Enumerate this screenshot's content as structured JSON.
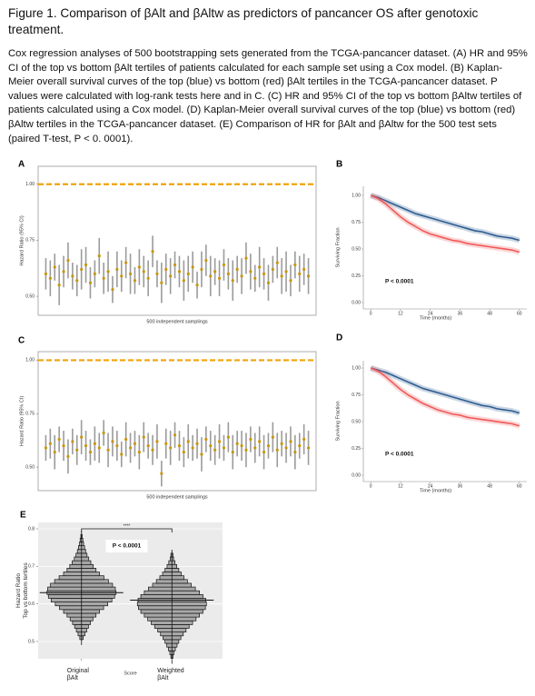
{
  "caption": {
    "title": "Figure 1.  Comparison of βAlt and βAltw as predictors of pancancer OS after genotoxic treatment.",
    "text": "Cox regression analyses of 500 bootstrapping sets generated from the TCGA-pancancer dataset. (A) HR and 95% CI of the top vs bottom βAlt tertiles of patients calculated for each sample set using a Cox model. (B) Kaplan-Meier overall survival curves of the top (blue) vs bottom (red) βAlt tertiles in the TCGA-pancancer dataset. P values were calculated with log-rank tests here and in C. (C) HR and 95% CI of the top vs bottom βAltw tertiles of patients calculated using a Cox model. (D) Kaplan-Meier overall survival curves of the top (blue) vs bottom (red) βAltw tertiles in the TCGA-pancancer dataset. (E) Comparison of HR for βAlt and βAltw for the 500 test sets (paired T-test, P < 0. 0001)."
  },
  "chart_data": [
    {
      "type": "errorbar",
      "panel_label": "A",
      "xlabel": "500 independent samplings",
      "ylabel": "Hazard Ratio (95% CI)",
      "ylim": [
        0.415,
        1.08
      ],
      "yticks": [
        {
          "value": 0.5,
          "label": "0.50"
        },
        {
          "value": 0.75,
          "label": "0.75"
        },
        {
          "value": 1.0,
          "label": "1.00"
        }
      ],
      "hline": 1.0,
      "hline_color": "#f0a30a",
      "color": "#c8960c",
      "error_color": "#8a8a8a",
      "grid": false,
      "values": [
        0.6,
        0.58,
        0.63,
        0.55,
        0.61,
        0.66,
        0.59,
        0.57,
        0.62,
        0.64,
        0.56,
        0.6,
        0.68,
        0.58,
        0.61,
        0.53,
        0.62,
        0.59,
        0.65,
        0.6,
        0.57,
        0.63,
        0.61,
        0.58,
        0.7,
        0.6,
        0.56,
        0.62,
        0.59,
        0.64,
        0.61,
        0.57,
        0.6,
        0.63,
        0.55,
        0.62,
        0.66,
        0.59,
        0.61,
        0.58,
        0.64,
        0.6,
        0.57,
        0.62,
        0.59,
        0.67,
        0.61,
        0.58,
        0.63,
        0.6,
        0.56,
        0.62,
        0.65,
        0.59,
        0.61,
        0.57,
        0.64,
        0.6,
        0.62,
        0.59
      ],
      "errors": [
        0.07,
        0.08,
        0.06,
        0.09,
        0.07,
        0.08,
        0.06,
        0.07,
        0.09,
        0.08,
        0.07,
        0.06,
        0.08,
        0.07,
        0.09,
        0.06,
        0.08,
        0.07,
        0.07,
        0.09,
        0.06,
        0.08,
        0.07,
        0.08,
        0.07,
        0.06,
        0.09,
        0.07,
        0.08,
        0.06,
        0.07,
        0.09,
        0.08,
        0.07,
        0.06,
        0.08,
        0.07,
        0.09,
        0.06,
        0.08,
        0.07,
        0.07,
        0.09,
        0.06,
        0.08,
        0.07,
        0.08,
        0.06,
        0.09,
        0.07,
        0.08,
        0.06,
        0.07,
        0.08,
        0.09,
        0.07,
        0.06,
        0.08,
        0.07,
        0.08
      ]
    },
    {
      "type": "line",
      "panel_label": "B",
      "xlabel": "Time (months)",
      "ylabel": "Surviving Fraction",
      "annotation": "P < 0.0001",
      "xlim": [
        -3,
        63
      ],
      "xticks": [
        0,
        12,
        24,
        36,
        48,
        60
      ],
      "ylim": [
        -0.06,
        1.085
      ],
      "yticks": [
        {
          "value": 0,
          "label": "0.00"
        },
        {
          "value": 0.25,
          "label": "0.25"
        },
        {
          "value": 0.5,
          "label": "0.50"
        },
        {
          "value": 0.75,
          "label": "0.75"
        },
        {
          "value": 1.0,
          "label": "1.00"
        }
      ],
      "x": [
        0,
        3,
        6,
        9,
        12,
        15,
        18,
        21,
        24,
        27,
        30,
        33,
        36,
        39,
        42,
        45,
        48,
        51,
        54,
        57,
        60
      ],
      "series": [
        {
          "color": "#2e5d91",
          "values": [
            1.0,
            0.98,
            0.95,
            0.92,
            0.89,
            0.86,
            0.83,
            0.81,
            0.79,
            0.77,
            0.75,
            0.73,
            0.71,
            0.69,
            0.67,
            0.66,
            0.64,
            0.62,
            0.61,
            0.6,
            0.58
          ]
        },
        {
          "color": "#f05a5a",
          "values": [
            1.0,
            0.97,
            0.92,
            0.86,
            0.8,
            0.75,
            0.71,
            0.67,
            0.64,
            0.62,
            0.6,
            0.58,
            0.57,
            0.55,
            0.54,
            0.53,
            0.52,
            0.51,
            0.5,
            0.49,
            0.47
          ]
        }
      ]
    },
    {
      "type": "errorbar",
      "panel_label": "C",
      "xlabel": "500 independent samplings",
      "ylabel": "Hazard Ratio (95% CI)",
      "ylim": [
        0.39,
        1.04
      ],
      "yticks": [
        {
          "value": 0.5,
          "label": "0.50"
        },
        {
          "value": 0.75,
          "label": "0.75"
        },
        {
          "value": 1.0,
          "label": "1.00"
        }
      ],
      "hline": 1.0,
      "hline_color": "#f0a30a",
      "color": "#c8960c",
      "error_color": "#8a8a8a",
      "grid": false,
      "values": [
        0.59,
        0.61,
        0.57,
        0.63,
        0.6,
        0.55,
        0.62,
        0.58,
        0.64,
        0.6,
        0.57,
        0.61,
        0.59,
        0.66,
        0.58,
        0.62,
        0.6,
        0.56,
        0.63,
        0.59,
        0.61,
        0.57,
        0.64,
        0.6,
        0.58,
        0.62,
        0.47,
        0.61,
        0.59,
        0.65,
        0.6,
        0.57,
        0.62,
        0.59,
        0.61,
        0.56,
        0.63,
        0.6,
        0.58,
        0.62,
        0.59,
        0.64,
        0.57,
        0.61,
        0.6,
        0.58,
        0.63,
        0.59,
        0.62,
        0.57,
        0.6,
        0.64,
        0.58,
        0.61,
        0.59,
        0.62,
        0.57,
        0.6,
        0.63,
        0.59
      ],
      "errors": [
        0.06,
        0.07,
        0.08,
        0.06,
        0.07,
        0.08,
        0.06,
        0.07,
        0.08,
        0.07,
        0.06,
        0.08,
        0.07,
        0.06,
        0.08,
        0.07,
        0.07,
        0.06,
        0.08,
        0.07,
        0.06,
        0.08,
        0.07,
        0.06,
        0.07,
        0.08,
        0.06,
        0.07,
        0.08,
        0.06,
        0.07,
        0.07,
        0.08,
        0.06,
        0.07,
        0.08,
        0.06,
        0.07,
        0.07,
        0.08,
        0.06,
        0.07,
        0.08,
        0.06,
        0.07,
        0.08,
        0.06,
        0.07,
        0.07,
        0.08,
        0.06,
        0.07,
        0.08,
        0.06,
        0.07,
        0.07,
        0.08,
        0.06,
        0.07,
        0.08
      ]
    },
    {
      "type": "line",
      "panel_label": "D",
      "xlabel": "Time (months)",
      "ylabel": "Surviving Fraction",
      "annotation": "P < 0.0001",
      "xlim": [
        -3,
        63
      ],
      "xticks": [
        0,
        12,
        24,
        36,
        48,
        60
      ],
      "ylim": [
        -0.059,
        1.068
      ],
      "yticks": [
        {
          "value": 0,
          "label": "0.00"
        },
        {
          "value": 0.25,
          "label": "0.25"
        },
        {
          "value": 0.5,
          "label": "0.50"
        },
        {
          "value": 0.75,
          "label": "0.75"
        },
        {
          "value": 1.0,
          "label": "1.00"
        }
      ],
      "x": [
        0,
        3,
        6,
        9,
        12,
        15,
        18,
        21,
        24,
        27,
        30,
        33,
        36,
        39,
        42,
        45,
        48,
        51,
        54,
        57,
        60
      ],
      "series": [
        {
          "color": "#2e5d91",
          "values": [
            1.0,
            0.98,
            0.96,
            0.93,
            0.9,
            0.87,
            0.84,
            0.81,
            0.79,
            0.77,
            0.75,
            0.73,
            0.71,
            0.69,
            0.67,
            0.65,
            0.64,
            0.62,
            0.61,
            0.6,
            0.58
          ]
        },
        {
          "color": "#f05a5a",
          "values": [
            1.0,
            0.97,
            0.92,
            0.86,
            0.8,
            0.75,
            0.71,
            0.67,
            0.64,
            0.61,
            0.59,
            0.57,
            0.56,
            0.54,
            0.53,
            0.52,
            0.51,
            0.5,
            0.49,
            0.48,
            0.46
          ]
        }
      ]
    },
    {
      "type": "violin",
      "panel_label": "E",
      "xlabel": "Score",
      "ylabel": "Hazard Ratio\nTop vs bottom tertiles",
      "annotation": "P < 0.0001",
      "significance": "****",
      "categories": [
        "Original\nβAlt",
        "Weighted\nβAlt"
      ],
      "ylim": [
        0.454,
        0.817
      ],
      "yticks": [
        0.5,
        0.6,
        0.7,
        0.8
      ],
      "grid": true,
      "color": "#a8a8a8",
      "y": [
        0.45,
        0.46,
        0.47,
        0.48,
        0.49,
        0.5,
        0.51,
        0.52,
        0.53,
        0.54,
        0.55,
        0.56,
        0.57,
        0.58,
        0.59,
        0.6,
        0.61,
        0.62,
        0.63,
        0.64,
        0.65,
        0.66,
        0.67,
        0.68,
        0.69,
        0.7,
        0.71,
        0.72,
        0.73,
        0.74,
        0.75,
        0.76,
        0.77,
        0.78,
        0.79,
        0.8
      ],
      "medians": [
        0.63,
        0.61
      ],
      "violins": [
        {
          "density": [
            0,
            0,
            0,
            0,
            0,
            0,
            0.05,
            0.1,
            0.15,
            0.2,
            0.26,
            0.33,
            0.42,
            0.52,
            0.64,
            0.76,
            0.88,
            0.96,
            1.0,
            0.98,
            0.9,
            0.78,
            0.65,
            0.52,
            0.42,
            0.34,
            0.27,
            0.21,
            0.16,
            0.12,
            0.09,
            0.06,
            0.04,
            0.02,
            0,
            0
          ]
        },
        {
          "density": [
            0,
            0.03,
            0.06,
            0.1,
            0.15,
            0.2,
            0.26,
            0.33,
            0.41,
            0.5,
            0.6,
            0.7,
            0.8,
            0.9,
            0.97,
            1.0,
            0.98,
            0.9,
            0.8,
            0.68,
            0.56,
            0.45,
            0.35,
            0.27,
            0.2,
            0.14,
            0.09,
            0.05,
            0.03,
            0,
            0,
            0,
            0,
            0,
            0,
            0
          ]
        }
      ]
    }
  ]
}
